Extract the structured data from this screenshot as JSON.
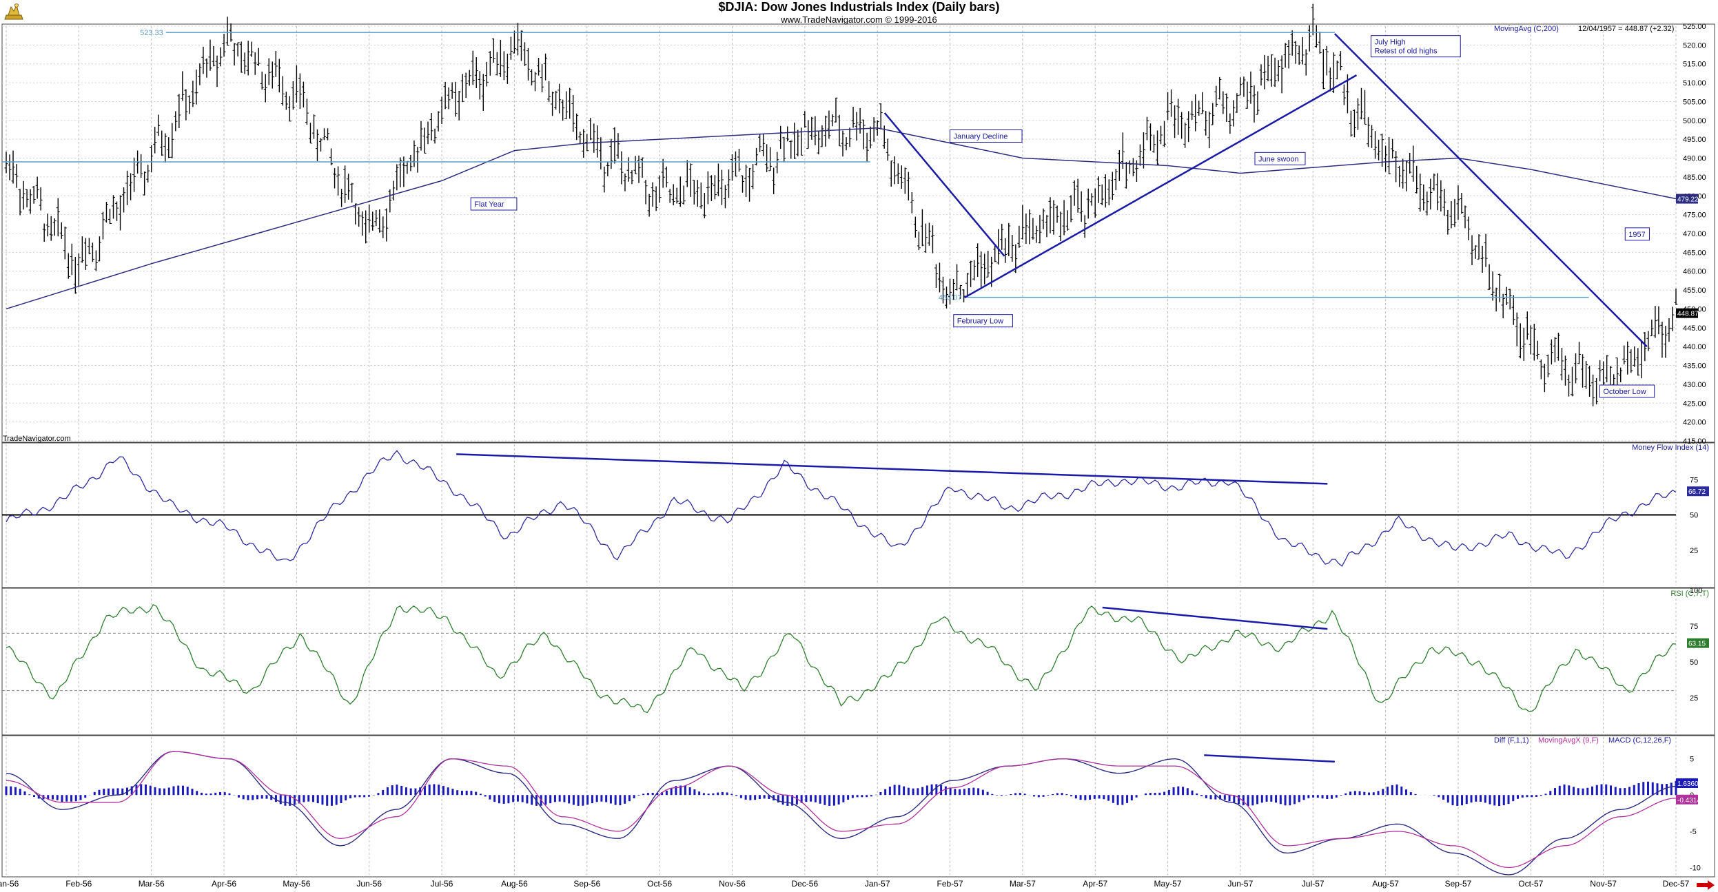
{
  "header": {
    "title": "$DJIA:  Dow Jones Industrials Index  (Daily bars)",
    "subtitle": "www.TradeNavigator.com © 1999-2016",
    "watermark": "TradeNavigator.com"
  },
  "colors": {
    "price_bars": "#000000",
    "moving_avg": "#2b2b80",
    "trendline": "#1a1aa8",
    "horizontal_lines": "#5b9bc8",
    "mfi": "#2b2b9c",
    "rsi": "#2e7d2e",
    "macd_diff": "#1a1ab8",
    "macd_signal": "#b0309c",
    "macd": "#2b2b80",
    "legend_ma": "#1a1a99",
    "legend_mfi": "#1a1a99",
    "legend_rsi": "#2e7d2e",
    "legend_macd_magenta": "#b0309c",
    "axis_marker_red": "#cc0000"
  },
  "x_axis_labels": [
    "Jan-56",
    "Feb-56",
    "Mar-56",
    "Apr-56",
    "May-56",
    "Jun-56",
    "Jul-56",
    "Aug-56",
    "Sep-56",
    "Oct-56",
    "Nov-56",
    "Dec-56",
    "Jan-57",
    "Feb-57",
    "Mar-57",
    "Apr-57",
    "May-57",
    "Jun-57",
    "Jul-57",
    "Aug-57",
    "Sep-57",
    "Oct-57",
    "Nov-57",
    "Dec-57"
  ],
  "panels": {
    "price": {
      "legend_name": "MovingAvg (C,200)",
      "legend_info": "12/04/1957 = 448.87 (+2.32)",
      "ticks": [
        "525.00",
        "520.00",
        "515.00",
        "510.00",
        "505.00",
        "500.00",
        "495.00",
        "490.00",
        "485.00",
        "480.00",
        "475.00",
        "470.00",
        "465.00",
        "460.00",
        "455.00",
        "450.00",
        "445.00",
        "440.00",
        "435.00",
        "430.00",
        "425.00",
        "420.00",
        "415.00"
      ],
      "last_ma_label": "479.22",
      "last_price_label": "448.87",
      "high_label": "523.33",
      "low_label": "453.07",
      "annotations": [
        "Flat Year",
        "January Decline",
        "February Low",
        "June swoon",
        "July High",
        "Retest of old highs",
        "1957",
        "October Low"
      ]
    },
    "mfi": {
      "legend": "Money Flow Index (14)",
      "ticks": [
        "75",
        "50",
        "25"
      ],
      "last_label": "66.72"
    },
    "rsi": {
      "legend": "RSI (C,7,T)",
      "ticks": [
        "100",
        "75",
        "50",
        "25"
      ],
      "last_label": "63.15"
    },
    "macd": {
      "legend_diff": "Diff (F,1,1)",
      "legend_signal": "MovingAvgX (9,F)",
      "legend_macd": "MACD (C,12,26,F)",
      "ticks": [
        "5",
        "0",
        "-5",
        "-10"
      ],
      "last_label_diff": "1.6360",
      "last_label_signal": "-0.4314"
    }
  },
  "chart_data": [
    {
      "type": "ohlc",
      "title": "$DJIA:  Dow Jones Industrials Index  (Daily bars)",
      "ylim": [
        415,
        525
      ],
      "key_points": [
        {
          "date": "Jan-56",
          "close": 488
        },
        {
          "date": "Feb-56",
          "close": 462
        },
        {
          "date": "Mar-56",
          "close": 490
        },
        {
          "date": "Apr-56",
          "close": 521
        },
        {
          "date": "May-56",
          "close": 507
        },
        {
          "date": "Jun-56",
          "close": 470
        },
        {
          "date": "Jul-56",
          "close": 503
        },
        {
          "date": "Aug-56",
          "close": 520
        },
        {
          "date": "Sep-56",
          "close": 495
        },
        {
          "date": "Oct-56",
          "close": 480
        },
        {
          "date": "Nov-56",
          "close": 483
        },
        {
          "date": "Dec-56",
          "close": 497
        },
        {
          "date": "Jan-57",
          "close": 498
        },
        {
          "date": "Feb-57",
          "close": 454
        },
        {
          "date": "Mar-57",
          "close": 470
        },
        {
          "date": "Apr-57",
          "close": 478
        },
        {
          "date": "May-57",
          "close": 500
        },
        {
          "date": "Jun-57",
          "close": 505
        },
        {
          "date": "Jul-57",
          "close": 522
        },
        {
          "date": "Aug-57",
          "close": 490
        },
        {
          "date": "Sep-57",
          "close": 475
        },
        {
          "date": "Oct-57",
          "close": 440
        },
        {
          "date": "Nov-57",
          "close": 430
        },
        {
          "date": "Dec-57",
          "close": 449
        }
      ],
      "moving_average_200": [
        {
          "date": "Jan-56",
          "value": 450
        },
        {
          "date": "Mar-56",
          "value": 462
        },
        {
          "date": "May-56",
          "value": 473
        },
        {
          "date": "Jul-56",
          "value": 484
        },
        {
          "date": "Aug-56",
          "value": 492
        },
        {
          "date": "Sep-56",
          "value": 494
        },
        {
          "date": "Nov-56",
          "value": 496
        },
        {
          "date": "Jan-57",
          "value": 498
        },
        {
          "date": "Mar-57",
          "value": 490
        },
        {
          "date": "May-57",
          "value": 488
        },
        {
          "date": "Jun-57",
          "value": 486
        },
        {
          "date": "Aug-57",
          "value": 489
        },
        {
          "date": "Sep-57",
          "value": 490
        },
        {
          "date": "Oct-57",
          "value": 487
        },
        {
          "date": "Dec-57",
          "value": 479.22
        }
      ],
      "reference_lines": [
        523.33,
        453.07,
        489
      ]
    },
    {
      "type": "line",
      "title": "Money Flow Index (14)",
      "ylim": [
        0,
        100
      ],
      "series": [
        {
          "name": "Money Flow Index (14)",
          "values": [
            45,
            60,
            90,
            55,
            40,
            15,
            60,
            95,
            70,
            35,
            60,
            20,
            60,
            45,
            85,
            55,
            25,
            70,
            55,
            65,
            75,
            70,
            75,
            30,
            15,
            45,
            25,
            35,
            20,
            50,
            66.72
          ]
        }
      ]
    },
    {
      "type": "line",
      "title": "RSI (C,7,T)",
      "ylim": [
        0,
        100
      ],
      "series": [
        {
          "name": "RSI (C,7,T)",
          "values": [
            60,
            25,
            80,
            90,
            45,
            30,
            70,
            20,
            90,
            80,
            40,
            70,
            30,
            15,
            60,
            30,
            70,
            20,
            40,
            80,
            60,
            30,
            85,
            80,
            50,
            70,
            60,
            85,
            20,
            60,
            50,
            15,
            60,
            30,
            63.15
          ]
        }
      ]
    },
    {
      "type": "line",
      "title": "MACD (C,12,26,F)",
      "ylim": [
        -11,
        8
      ],
      "series": [
        {
          "name": "MACD (C,12,26,F)",
          "values": [
            3,
            -2,
            0,
            6,
            5,
            -1,
            -7,
            -2,
            5,
            3,
            -4,
            -6,
            2,
            4,
            -1,
            -6,
            -3,
            2,
            4,
            5,
            3,
            5,
            -1,
            -8,
            -6,
            -4,
            -8,
            -11,
            -6,
            -2,
            1.2
          ]
        },
        {
          "name": "MovingAvgX (9,F)",
          "values": [
            2,
            -1,
            -1,
            6,
            5,
            0,
            -6,
            -3,
            5,
            4,
            -3,
            -5,
            1,
            4,
            0,
            -5,
            -4,
            1,
            4,
            5,
            4,
            4,
            0,
            -7,
            -6,
            -5,
            -7,
            -10,
            -7,
            -3,
            -0.4314
          ]
        },
        {
          "name": "Diff (F,1,1)",
          "values": [
            1,
            -1,
            1,
            1,
            0,
            -1,
            -1,
            1,
            1,
            -1,
            -1,
            -1,
            1,
            0,
            -1,
            -1,
            1,
            1,
            0,
            0,
            -1,
            1,
            -1,
            -1,
            0,
            1,
            -1,
            -1,
            1,
            1,
            1.636
          ]
        }
      ]
    }
  ]
}
